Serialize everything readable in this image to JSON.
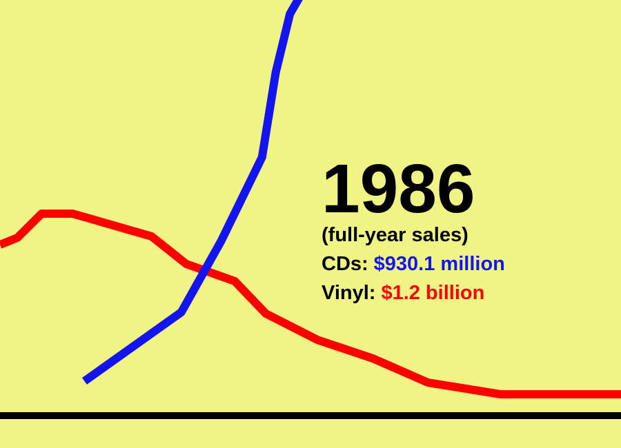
{
  "chart_data": {
    "type": "line",
    "xlim": [
      0,
      100
    ],
    "ylim": [
      0,
      3295
    ],
    "series": [
      {
        "name": "Vinyl",
        "color": "#ff0000",
        "x": [
          0,
          2.8,
          6.7,
          11.7,
          24.4,
          30,
          37.8,
          42.8,
          51.1,
          60,
          68.9,
          80.6,
          100
        ],
        "values": [
          1355,
          1410,
          1601,
          1601,
          1421,
          1202,
          1066,
          809,
          601,
          454,
          262,
          169,
          169
        ]
      },
      {
        "name": "CDs",
        "color": "#1414f0",
        "x": [
          13.6,
          29.2,
          35.6,
          42.2,
          44.4,
          46.7,
          48.3
        ],
        "values": [
          273,
          820,
          1383,
          2049,
          2721,
          3186,
          3322
        ]
      }
    ],
    "annotation": {
      "year": "1986",
      "note": "(full-year sales)",
      "lines": [
        {
          "label": "CDs:",
          "value_text": "$930.1 million",
          "color": "#1414f0"
        },
        {
          "label": "Vinyl:",
          "value_text": "$1.2 billion",
          "color": "#ff0000"
        }
      ]
    }
  }
}
